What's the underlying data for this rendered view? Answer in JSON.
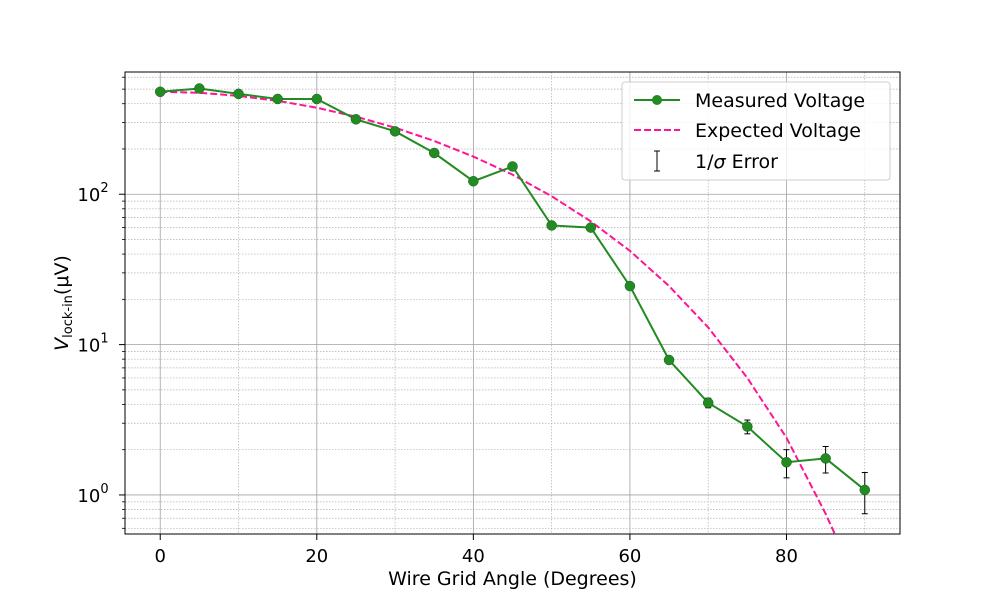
{
  "chart_data": {
    "type": "line",
    "title": "",
    "xlabel": "Wire Grid Angle (Degrees)",
    "ylabel_symbol": "V",
    "ylabel_subscript": "lock-in",
    "ylabel_units": "(μV)",
    "y_scale": "log",
    "xlim": [
      -4.5,
      94.5
    ],
    "ylim": [
      0.55,
      650
    ],
    "x_ticks": [
      0,
      20,
      40,
      60,
      80
    ],
    "x_tick_labels": [
      "0",
      "20",
      "40",
      "60",
      "80"
    ],
    "y_ticks": [
      1,
      10,
      100
    ],
    "y_tick_labels": [
      {
        "base": "10",
        "exp": "0"
      },
      {
        "base": "10",
        "exp": "1"
      },
      {
        "base": "10",
        "exp": "2"
      }
    ],
    "grid": true,
    "legend_position": "top-right",
    "x": [
      0,
      5,
      10,
      15,
      20,
      25,
      30,
      35,
      40,
      45,
      50,
      55,
      60,
      65,
      70,
      75,
      80,
      85,
      90
    ],
    "series": [
      {
        "name": "Measured Voltage",
        "style": "line-marker",
        "color": "#228b22",
        "values": [
          480,
          505,
          465,
          430,
          430,
          315,
          262,
          188,
          122,
          153,
          62,
          60,
          24.5,
          7.9,
          4.1,
          2.85,
          1.65,
          1.75,
          1.08
        ]
      },
      {
        "name": "Expected Voltage",
        "style": "dashed",
        "color": "#ff1493",
        "values": [
          480,
          473,
          451,
          418,
          376,
          328,
          277,
          226,
          178,
          135,
          97,
          66,
          42,
          24.5,
          13,
          6.0,
          2.4,
          0.75,
          0.2
        ]
      }
    ],
    "error_entry": {
      "name_prefix": "1/",
      "name_symbol": "σ",
      "name_suffix": " Error",
      "color": "#000000",
      "errors": [
        8,
        8,
        8,
        8,
        8,
        8,
        6,
        5,
        4,
        4,
        2,
        2,
        1,
        0.3,
        0.3,
        0.3,
        0.35,
        0.35,
        0.33
      ]
    }
  }
}
